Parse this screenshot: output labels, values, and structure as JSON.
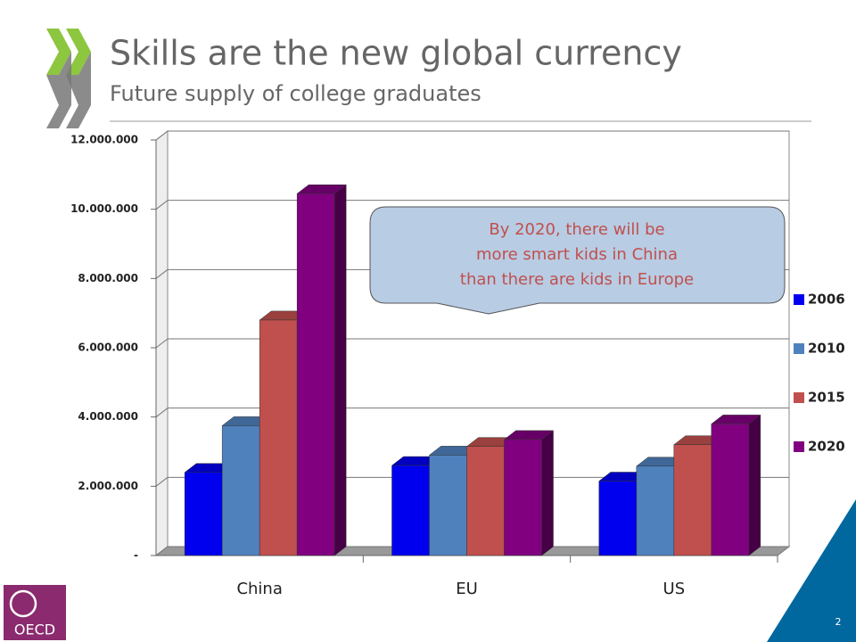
{
  "title": "Skills are the new global currency",
  "subtitle": "Future supply of college graduates",
  "footer": {
    "logo": "OECD",
    "page": "2"
  },
  "chart_data": {
    "type": "bar",
    "categories": [
      "China",
      "EU",
      "US"
    ],
    "series": [
      {
        "name": "2006",
        "color": "#0000ee",
        "values": [
          2400000,
          2600000,
          2150000
        ]
      },
      {
        "name": "2010",
        "color": "#4f81bd",
        "values": [
          3750000,
          2900000,
          2580000
        ]
      },
      {
        "name": "2015",
        "color": "#c0504d",
        "values": [
          6800000,
          3150000,
          3200000
        ]
      },
      {
        "name": "2020",
        "color": "#800080",
        "values": [
          10450000,
          3350000,
          3800000
        ]
      }
    ],
    "ylim": [
      0,
      12000000
    ],
    "yticks": [
      {
        "value": 0,
        "label": "-"
      },
      {
        "value": 2000000,
        "label": "2.000.000"
      },
      {
        "value": 4000000,
        "label": "4.000.000"
      },
      {
        "value": 6000000,
        "label": "6.000.000"
      },
      {
        "value": 8000000,
        "label": "8.000.000"
      },
      {
        "value": 10000000,
        "label": "10.000.000"
      },
      {
        "value": 12000000,
        "label": "12.000.000"
      }
    ],
    "grid": true,
    "legend": "right",
    "annotation": [
      "By 2020, there will be",
      "more smart kids in China",
      "than there are kids in Europe"
    ]
  }
}
